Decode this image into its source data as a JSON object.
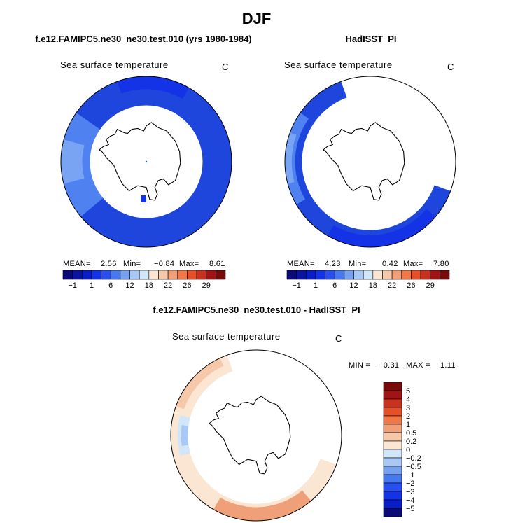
{
  "header": {
    "title": "DJF"
  },
  "panels": [
    {
      "subtitle": "f.e12.FAMIPC5.ne30_ne30.test.010 (yrs 1980-1984)",
      "plot_title": "Sea surface temperature",
      "unit": "C",
      "stats": {
        "mean_label": "MEAN=",
        "mean": "2.56",
        "min_label": "Min=",
        "min": "−0.84",
        "max_label": "Max=",
        "max": "8.61"
      }
    },
    {
      "subtitle": "HadISST_PI",
      "plot_title": "Sea surface temperature",
      "unit": "C",
      "stats": {
        "mean_label": "MEAN=",
        "mean": "4.23",
        "min_label": "Min=",
        "min": "0.42",
        "max_label": "Max=",
        "max": "7.80"
      }
    },
    {
      "subtitle": "f.e12.FAMIPC5.ne30_ne30.test.010 - HadISST_PI",
      "plot_title": "Sea surface temperature",
      "unit": "C",
      "stats": {
        "min_label": "MIN =",
        "min": "−0.31",
        "max_label": "MAX =",
        "max": "1.11"
      }
    }
  ],
  "chart_data": [
    {
      "type": "heatmap",
      "projection": "south-polar-stereographic",
      "title": "f.e12.FAMIPC5.ne30_ne30.test.010 (yrs 1980-1984)",
      "variable": "Sea surface temperature",
      "unit": "C",
      "mean": 2.56,
      "min": -0.84,
      "max": 8.61,
      "colorbar_levels": [
        -1,
        1,
        6,
        12,
        18,
        22,
        26,
        29
      ],
      "colorbar_labels": [
        "−1",
        "1",
        "6",
        "12",
        "18",
        "22",
        "26",
        "29"
      ],
      "colorbar_colors": [
        "#0a0a78",
        "#0a14a0",
        "#0a1ec8",
        "#1432e6",
        "#2850f0",
        "#4678f0",
        "#78a0f0",
        "#aac8f5",
        "#d2e6fa",
        "#fae6d2",
        "#f5c8aa",
        "#f0a078",
        "#f07846",
        "#e65028",
        "#c8321e",
        "#a01414",
        "#780a0a"
      ]
    },
    {
      "type": "heatmap",
      "projection": "south-polar-stereographic",
      "title": "HadISST_PI",
      "variable": "Sea surface temperature",
      "unit": "C",
      "mean": 4.23,
      "min": 0.42,
      "max": 7.8,
      "colorbar_levels": [
        -1,
        1,
        6,
        12,
        18,
        22,
        26,
        29
      ],
      "colorbar_labels": [
        "−1",
        "1",
        "6",
        "12",
        "18",
        "22",
        "26",
        "29"
      ],
      "colorbar_colors": [
        "#0a0a78",
        "#0a14a0",
        "#0a1ec8",
        "#1432e6",
        "#2850f0",
        "#4678f0",
        "#78a0f0",
        "#aac8f5",
        "#d2e6fa",
        "#fae6d2",
        "#f5c8aa",
        "#f0a078",
        "#f07846",
        "#e65028",
        "#c8321e",
        "#a01414",
        "#780a0a"
      ]
    },
    {
      "type": "heatmap",
      "projection": "south-polar-stereographic",
      "title": "f.e12.FAMIPC5.ne30_ne30.test.010 - HadISST_PI",
      "variable": "Sea surface temperature",
      "unit": "C",
      "min": -0.31,
      "max": 1.11,
      "colorbar_labels": [
        "5",
        "4",
        "3",
        "2",
        "1",
        "0.5",
        "0.2",
        "0",
        "−0.2",
        "−0.5",
        "−1",
        "−2",
        "−3",
        "−4",
        "−5"
      ],
      "colorbar_colors": [
        "#780a0a",
        "#a01414",
        "#c8321e",
        "#e65028",
        "#f07846",
        "#f0a078",
        "#f5c8aa",
        "#fae6d2",
        "#d2e6fa",
        "#aac8f5",
        "#78a0f0",
        "#4678f0",
        "#2850f0",
        "#1432e6",
        "#0a1ec8",
        "#0a0a78"
      ]
    }
  ]
}
